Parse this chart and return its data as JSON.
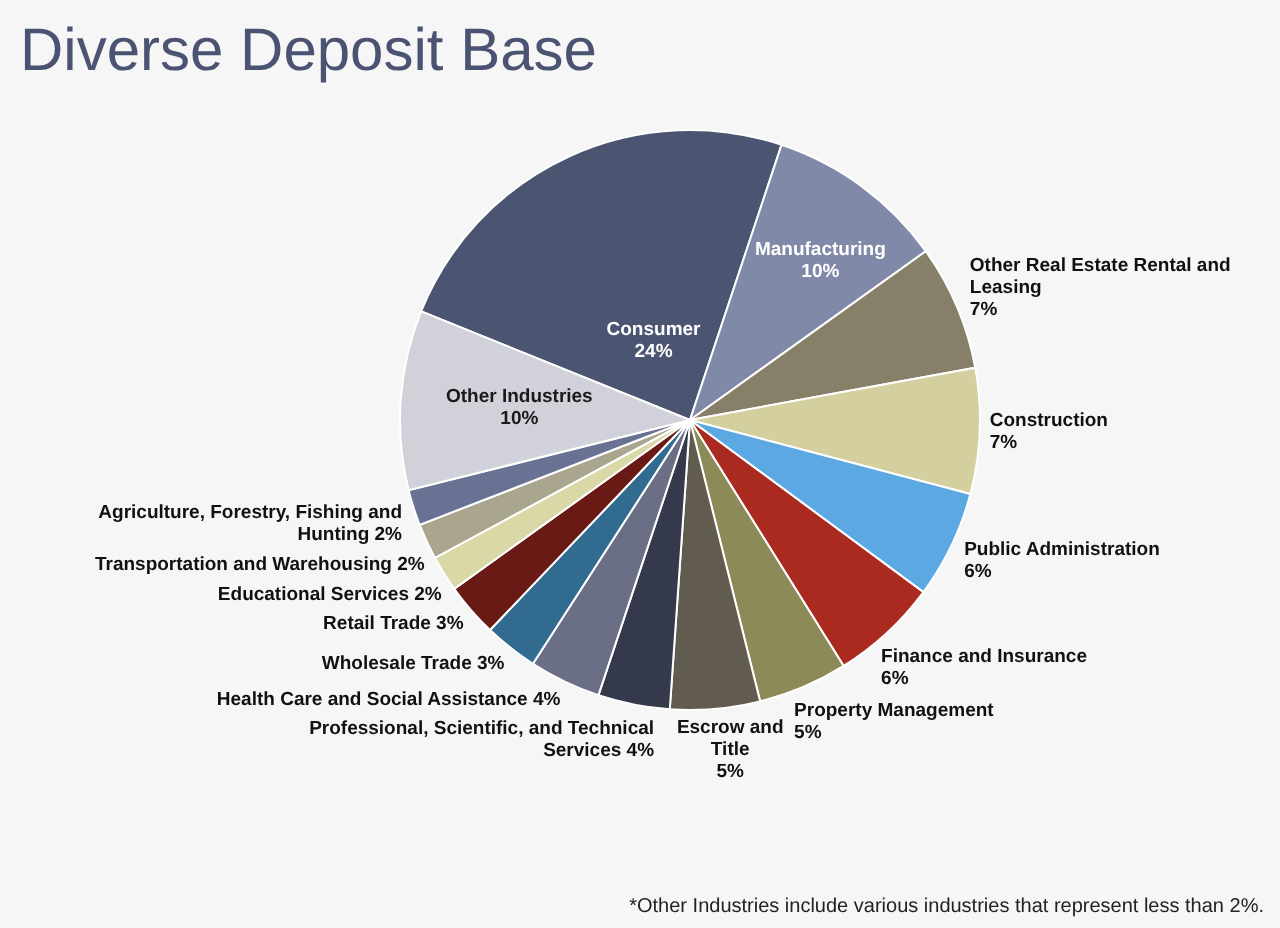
{
  "chart_data": {
    "type": "pie",
    "title": "Diverse Deposit Base",
    "categories": [
      "Consumer",
      "Manufacturing",
      "Other Real Estate Rental and Leasing",
      "Construction",
      "Public Administration",
      "Finance and Insurance",
      "Property Management",
      "Escrow and Title",
      "Professional, Scientific, and Technical Services",
      "Health Care and Social Assistance",
      "Wholesale Trade",
      "Retail Trade",
      "Educational Services",
      "Transportation and Warehousing",
      "Agriculture, Forestry, Fishing and Hunting",
      "Other Industries"
    ],
    "values": [
      24,
      10,
      7,
      7,
      6,
      6,
      5,
      5,
      4,
      4,
      3,
      3,
      2,
      2,
      2,
      10
    ],
    "colors": [
      "#4b5471",
      "#8189a8",
      "#878069",
      "#d4cf9f",
      "#5ba8e2",
      "#aa2a1f",
      "#8c8b57",
      "#615c4f",
      "#343a4b",
      "#6b6f86",
      "#316b8f",
      "#6a1a14",
      "#d9d8a6",
      "#aaa58f",
      "#6a7294",
      "#d1d1d9"
    ],
    "value_labels": [
      "24%",
      "10%",
      "7%",
      "7%",
      "6%",
      "6%",
      "5%",
      "5%",
      "4%",
      "4%",
      "3%",
      "3%",
      "2%",
      "2%",
      "2%",
      "10%"
    ],
    "annotations": [
      "*Other Industries include various industries that represent less than 2%."
    ]
  }
}
